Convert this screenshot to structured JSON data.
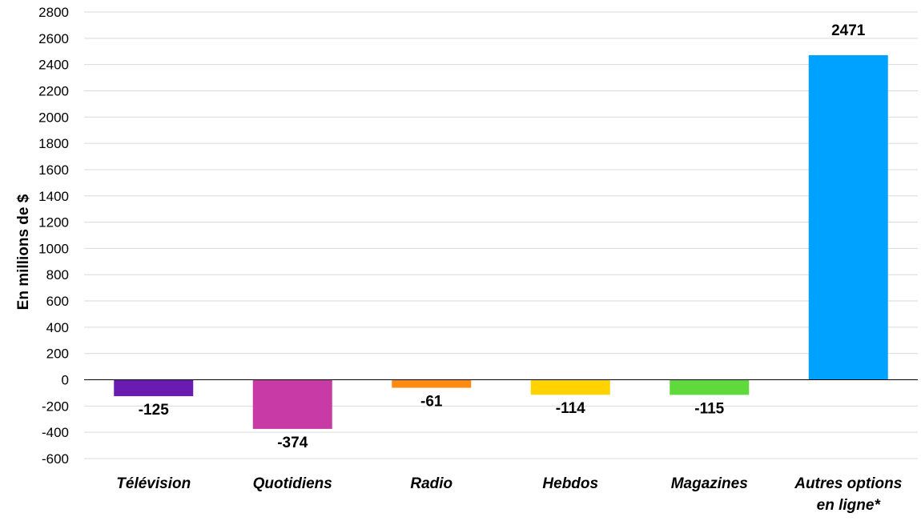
{
  "chart_data": {
    "type": "bar",
    "ylabel": "En millions de $",
    "ylim": [
      -600,
      2800
    ],
    "y_tick_step": 200,
    "grid": true,
    "legend": "none",
    "categories": [
      [
        "Télévision"
      ],
      [
        "Quotidiens"
      ],
      [
        "Radio"
      ],
      [
        "Hebdos"
      ],
      [
        "Magazines"
      ],
      [
        "Autres options",
        "en ligne*"
      ]
    ],
    "values": [
      -125,
      -374,
      -61,
      -114,
      -115,
      2471
    ],
    "data_labels": [
      "-125",
      "-374",
      "-61",
      "-114",
      "-115",
      "2471"
    ],
    "colors": [
      "#6a1cb0",
      "#c83aa5",
      "#ff8a12",
      "#ffd200",
      "#5fd93c",
      "#00a2ff"
    ]
  }
}
